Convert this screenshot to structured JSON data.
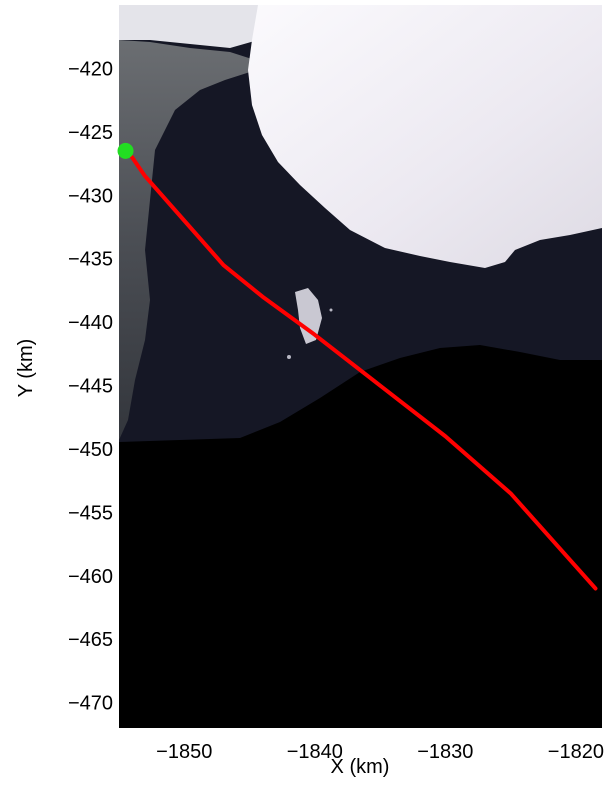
{
  "chart_data": {
    "type": "line",
    "title": "",
    "xlabel": "X (km)",
    "ylabel": "Y (km)",
    "xlim": [
      -1855,
      -1818
    ],
    "ylim": [
      -472,
      -415
    ],
    "x_ticks": [
      -1850,
      -1840,
      -1830,
      -1820
    ],
    "y_ticks": [
      -420,
      -425,
      -430,
      -435,
      -440,
      -445,
      -450,
      -455,
      -460,
      -465,
      -470
    ],
    "grid": false,
    "background": "satellite imagery (ice shelf, land, open water, no-data region)",
    "series": [
      {
        "color": "#ff0000",
        "x": [
          -1854.0,
          -1853.0,
          -1850.0,
          -1847.0,
          -1844.0,
          -1840.0,
          -1835.0,
          -1830.0,
          -1825.0,
          -1818.5
        ],
        "y": [
          -427.0,
          -428.5,
          -432.0,
          -435.5,
          -438.0,
          -441.0,
          -445.0,
          -449.0,
          -453.5,
          -461.0
        ]
      }
    ],
    "markers": [
      {
        "x": -1854.5,
        "y": -426.5,
        "color": "#22dd22",
        "shape": "circle"
      }
    ]
  },
  "image_colors": {
    "ice": "#f0eef4",
    "water": "#151725",
    "nodata": "#000000",
    "land": "#5a5c60"
  }
}
